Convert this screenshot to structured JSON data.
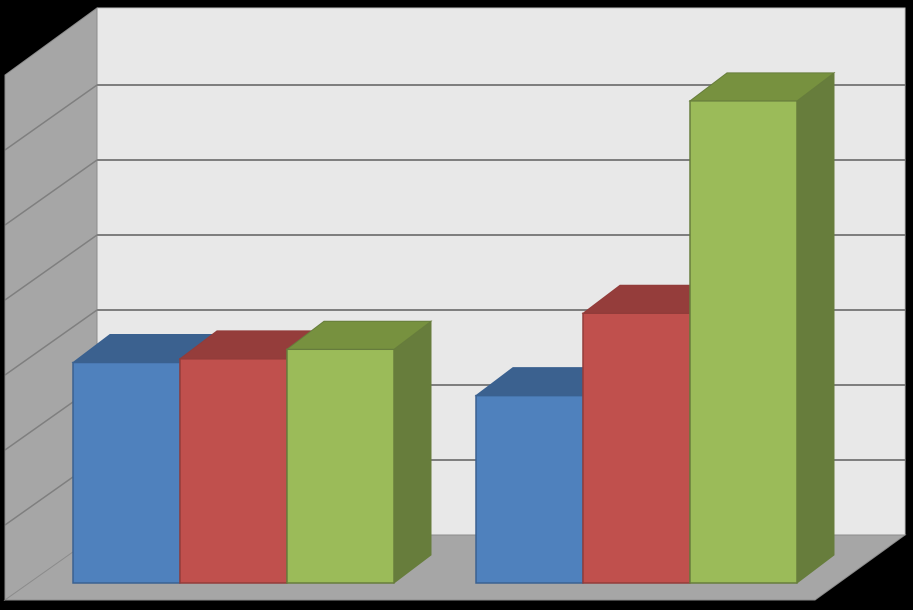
{
  "chart_data": {
    "type": "bar",
    "style": "3d-clustered-column",
    "title": "",
    "xlabel": "",
    "ylabel": "",
    "categories": [
      "",
      ""
    ],
    "series": [
      {
        "color": "#4f81bd",
        "side_color": "#3a6190",
        "top_color": "#3b618f",
        "values": [
          3.0,
          2.55
        ]
      },
      {
        "color": "#c0504d",
        "side_color": "#923c3a",
        "top_color": "#953d3b",
        "values": [
          3.05,
          3.67
        ]
      },
      {
        "color": "#9bbb59",
        "side_color": "#677d3c",
        "top_color": "#77913f",
        "values": [
          3.18,
          6.56
        ]
      }
    ],
    "ylim": [
      0,
      7
    ],
    "grid": true,
    "legend": "none",
    "colors": {
      "background": "#000000",
      "back_wall": "#e8e8e8",
      "side_wall": "#a6a6a6",
      "floor": "#a6a6a6",
      "gridline": "#7f7f7f"
    }
  }
}
